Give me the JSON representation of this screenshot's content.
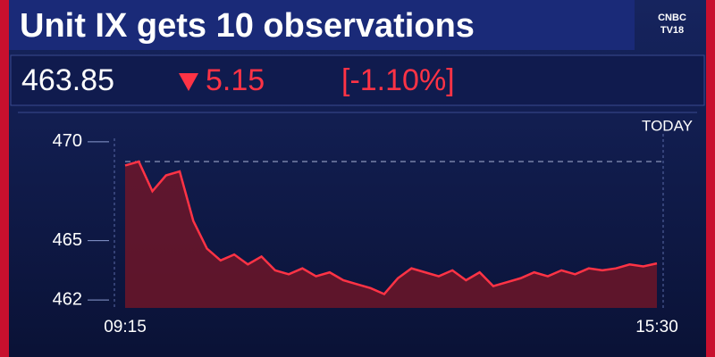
{
  "header": {
    "title": "Unit IX gets 10 observations",
    "logo_line1": "CNBC",
    "logo_line2": "TV18"
  },
  "quote": {
    "price": "463.85",
    "change": "5.15",
    "change_pct": "[-1.10%]"
  },
  "chart_data": {
    "type": "line",
    "period_label": "TODAY",
    "categories": [
      "09:15",
      null,
      null,
      null,
      null,
      null,
      null,
      null,
      null,
      null,
      null,
      null,
      null,
      null,
      null,
      null,
      null,
      null,
      null,
      null,
      null,
      null,
      null,
      null,
      null,
      null,
      null,
      null,
      null,
      null,
      null,
      null,
      null,
      null,
      null,
      null,
      null,
      null,
      null,
      "15:30"
    ],
    "series": [
      {
        "color": "#ff3345",
        "values": [
          468.8,
          469,
          467.5,
          468.3,
          468.5,
          466,
          464.6,
          464,
          464.3,
          463.8,
          464.2,
          463.5,
          463.3,
          463.6,
          463.2,
          463.4,
          463.0,
          462.8,
          462.6,
          462.3,
          463.1,
          463.6,
          463.4,
          463.2,
          463.5,
          463.0,
          463.4,
          462.7,
          462.9,
          463.1,
          463.4,
          463.2,
          463.5,
          463.3,
          463.6,
          463.5,
          463.6,
          463.8,
          463.7,
          463.85
        ]
      }
    ],
    "reference_line": 469,
    "ylim": [
      461.6,
      470.4
    ],
    "yticks": [
      462,
      465,
      470
    ]
  }
}
